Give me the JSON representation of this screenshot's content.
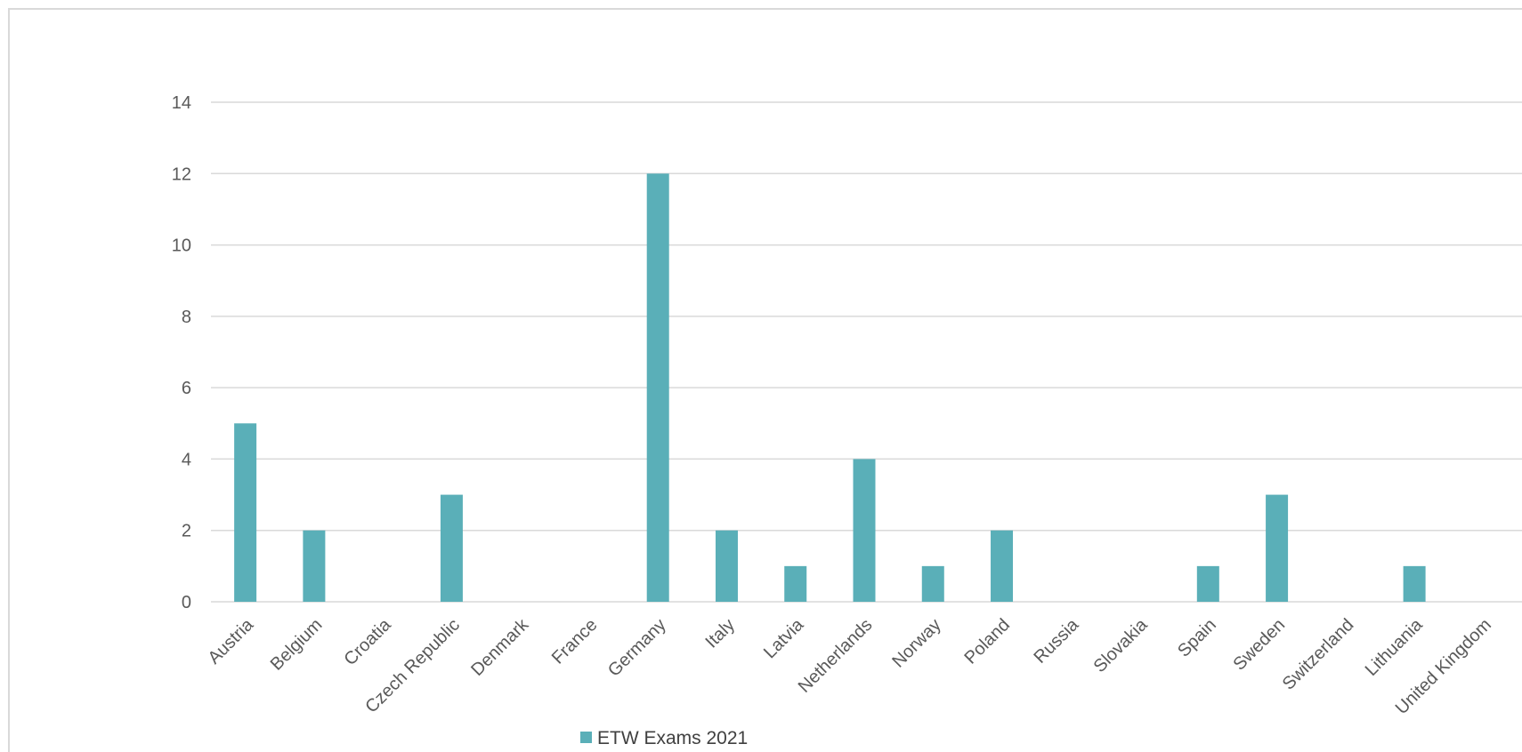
{
  "chart_data": {
    "type": "bar",
    "categories": [
      "Austria",
      "Belgium",
      "Croatia",
      "Czech Republic",
      "Denmark",
      "France",
      "Germany",
      "Italy",
      "Latvia",
      "Netherlands",
      "Norway",
      "Poland",
      "Russia",
      "Slovakia",
      "Spain",
      "Sweden",
      "Switzerland",
      "Lithuania",
      "United Kingdom"
    ],
    "series": [
      {
        "name": "ETW Exams 2021",
        "values": [
          5,
          2,
          0,
          3,
          0,
          0,
          12,
          2,
          1,
          4,
          1,
          2,
          0,
          0,
          1,
          3,
          0,
          1,
          0
        ]
      }
    ],
    "yticks": [
      "0",
      "2",
      "4",
      "6",
      "8",
      "10",
      "12",
      "14"
    ],
    "ylim": [
      0,
      14
    ],
    "grid": true,
    "legend_position": "bottom",
    "colors": {
      "bar": "#5aafb8",
      "grid": "#d9d9d9",
      "frame": "#d9d9d9"
    }
  }
}
